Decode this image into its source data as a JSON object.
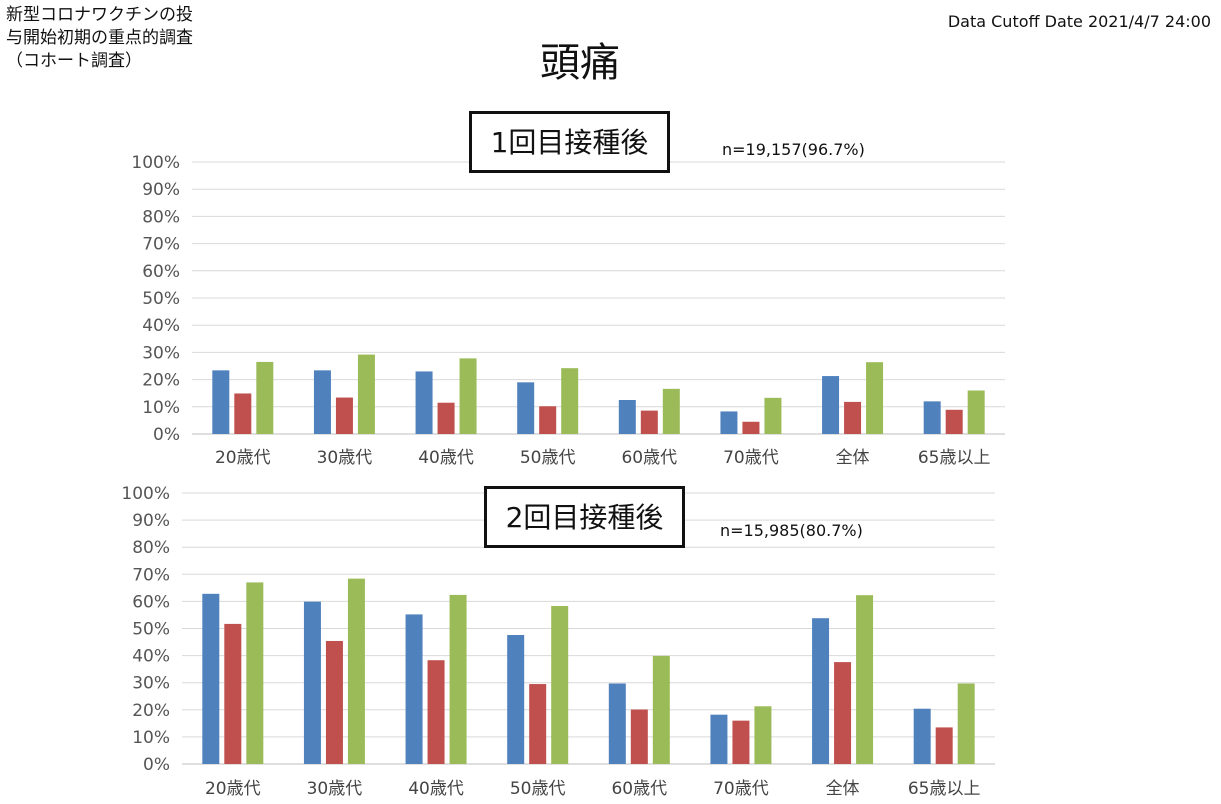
{
  "study_title": [
    "新型コロナワクチンの投",
    "与開始初期の重点的調査",
    "（コホート調査）"
  ],
  "cutoff": "Data Cutoff Date 2021/4/7 24:00",
  "title": "頭痛",
  "colors": {
    "series1": "#4f81bd",
    "series2": "#c0504d",
    "series3": "#9bbb59",
    "grid": "#d9d9d9"
  },
  "chart_data": [
    {
      "type": "bar",
      "title": "1回目接種後",
      "annotation": "n=19,157(96.7%)",
      "categories": [
        "20歳代",
        "30歳代",
        "40歳代",
        "50歳代",
        "60歳代",
        "70歳代",
        "全体",
        "65歳以上"
      ],
      "yticks": [
        "0%",
        "10%",
        "20%",
        "30%",
        "40%",
        "50%",
        "60%",
        "70%",
        "80%",
        "90%",
        "100%"
      ],
      "ylim": [
        0,
        100
      ],
      "grid": true,
      "series": [
        {
          "values": [
            23.4,
            23.4,
            23.0,
            19.0,
            12.5,
            8.3,
            21.3,
            12.0
          ]
        },
        {
          "values": [
            14.9,
            13.4,
            11.5,
            10.2,
            8.6,
            4.5,
            11.8,
            8.9
          ]
        },
        {
          "values": [
            26.5,
            29.2,
            27.8,
            24.2,
            16.6,
            13.3,
            26.4,
            16.0
          ]
        }
      ]
    },
    {
      "type": "bar",
      "title": "2回目接種後",
      "annotation": "n=15,985(80.7%)",
      "categories": [
        "20歳代",
        "30歳代",
        "40歳代",
        "50歳代",
        "60歳代",
        "70歳代",
        "全体",
        "65歳以上"
      ],
      "yticks": [
        "0%",
        "10%",
        "20%",
        "30%",
        "40%",
        "50%",
        "60%",
        "70%",
        "80%",
        "90%",
        "100%"
      ],
      "ylim": [
        0,
        100
      ],
      "grid": true,
      "series": [
        {
          "values": [
            62.8,
            59.9,
            55.2,
            47.6,
            29.7,
            18.2,
            53.8,
            20.4
          ]
        },
        {
          "values": [
            51.7,
            45.4,
            38.3,
            29.5,
            20.1,
            16.0,
            37.6,
            13.5
          ]
        },
        {
          "values": [
            67.0,
            68.4,
            62.4,
            58.3,
            39.9,
            21.3,
            62.3,
            29.7
          ]
        }
      ]
    }
  ]
}
